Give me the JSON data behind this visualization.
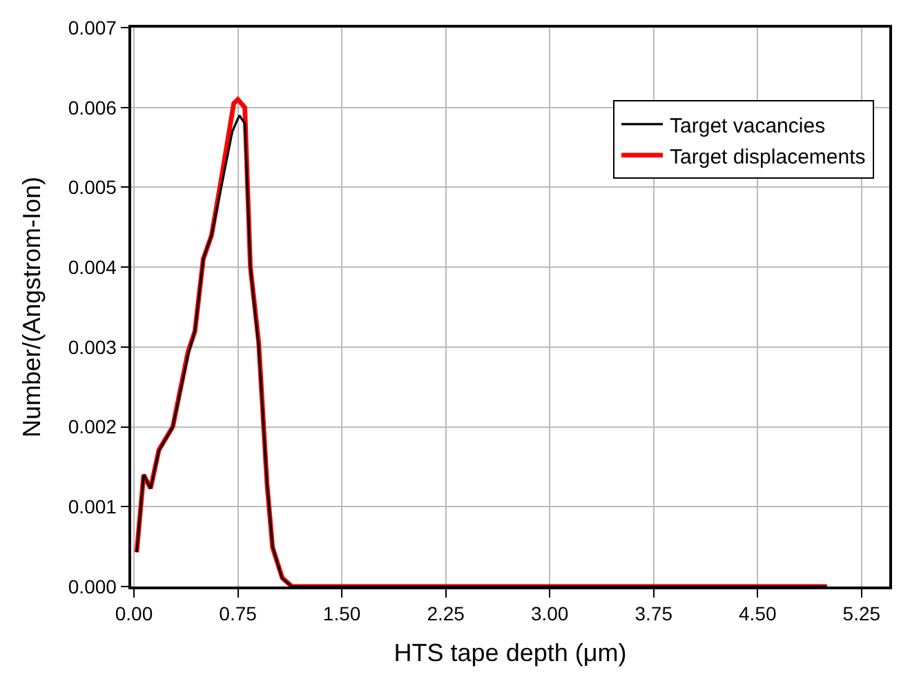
{
  "chart_data": {
    "type": "line",
    "xlabel": "HTS tape depth (μm)",
    "ylabel": "Number/(Angstrom-Ion)",
    "xlim": [
      -0.02,
      5.45
    ],
    "xticks": [
      {
        "value": 0,
        "label": "0.00"
      },
      0.75,
      {
        "value": 1.5,
        "label": "1.50"
      },
      2.25,
      {
        "value": 3,
        "label": "3.00"
      },
      3.75,
      {
        "value": 4.5,
        "label": "4.50"
      },
      5.25
    ],
    "ylim": [
      0,
      0.007
    ],
    "yticks": [
      {
        "value": 0,
        "label": "0.000"
      },
      0.001,
      0.002,
      0.003,
      0.004,
      0.005,
      0.006,
      0.007
    ],
    "grid": true,
    "legend": "top right",
    "marker": "none",
    "line_style": "solid",
    "series": [
      {
        "name": "Target vacancies",
        "color": "#000000",
        "x": [
          0.02,
          0.07,
          0.12,
          0.18,
          0.28,
          0.39,
          0.44,
          0.5,
          0.56,
          0.63,
          0.71,
          0.76,
          0.8,
          0.84,
          0.9,
          0.96,
          1.0,
          1.07,
          1.14,
          2.0,
          3.0,
          4.0,
          5.0
        ],
        "values": [
          0.00043,
          0.0014,
          0.00123,
          0.0017,
          0.002,
          0.0029,
          0.0032,
          0.0041,
          0.0044,
          0.005,
          0.0057,
          0.0059,
          0.0058,
          0.004,
          0.003,
          0.0013,
          0.0005,
          0.0001,
          0.0,
          0.0,
          0.0,
          0.0,
          0.0
        ]
      },
      {
        "name": "Target displacements",
        "color": "#ff0000",
        "x": [
          0.02,
          0.07,
          0.12,
          0.18,
          0.28,
          0.39,
          0.44,
          0.5,
          0.56,
          0.63,
          0.72,
          0.75,
          0.8,
          0.84,
          0.9,
          0.96,
          1.0,
          1.07,
          1.14,
          2.0,
          3.0,
          4.0,
          5.0
        ],
        "values": [
          0.00043,
          0.0014,
          0.00123,
          0.00171,
          0.002,
          0.00294,
          0.0032,
          0.0041,
          0.0044,
          0.0051,
          0.00605,
          0.0061,
          0.006,
          0.004,
          0.00306,
          0.00129,
          0.00049,
          0.00011,
          0.0,
          0.0,
          0.0,
          0.0,
          0.0
        ]
      }
    ]
  }
}
